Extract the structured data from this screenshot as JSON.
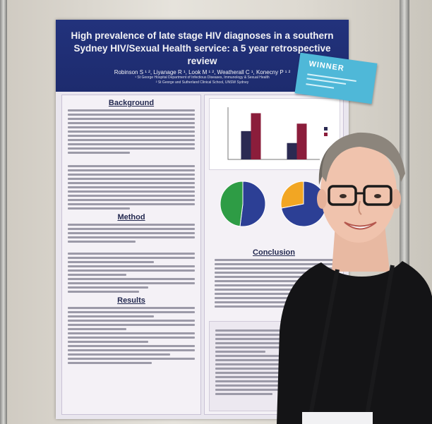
{
  "poster": {
    "title": "High prevalence of late stage HIV diagnoses in a southern Sydney HIV/Sexual Health service: a 5 year retrospective review",
    "authors": "Robinson S ¹ ², Liyanage R ¹, Look M ¹ ², Weatherall C ¹, Konecny P ¹ ²",
    "affiliation_1": "¹ St George Hospital Department of Infectious Diseases, Immunology & Sexual Health",
    "affiliation_2": "² St George and Sutherland Clinical School, UNSW Sydney",
    "sections": {
      "background": "Background",
      "method": "Method",
      "results": "Results",
      "conclusion": "Conclusion"
    }
  },
  "badge": {
    "text": "WINNER"
  },
  "chart_data": {
    "type": "bar",
    "categories": [
      "",
      ""
    ],
    "series": [
      {
        "values": [
          38,
          22
        ],
        "color": "#2b2a52"
      },
      {
        "values": [
          62,
          48
        ],
        "color": "#8b1d3b"
      }
    ],
    "ylim": [
      0,
      70
    ]
  },
  "pie_data": [
    {
      "values": [
        52,
        48
      ],
      "colors": [
        "#2c3f95",
        "#2e9c45"
      ]
    },
    {
      "values": [
        72,
        28
      ],
      "colors": [
        "#2c3f95",
        "#f2a623"
      ]
    }
  ],
  "colors": {
    "header": "#22327c",
    "badge": "#4fb8d8",
    "shirt": "#141416"
  }
}
